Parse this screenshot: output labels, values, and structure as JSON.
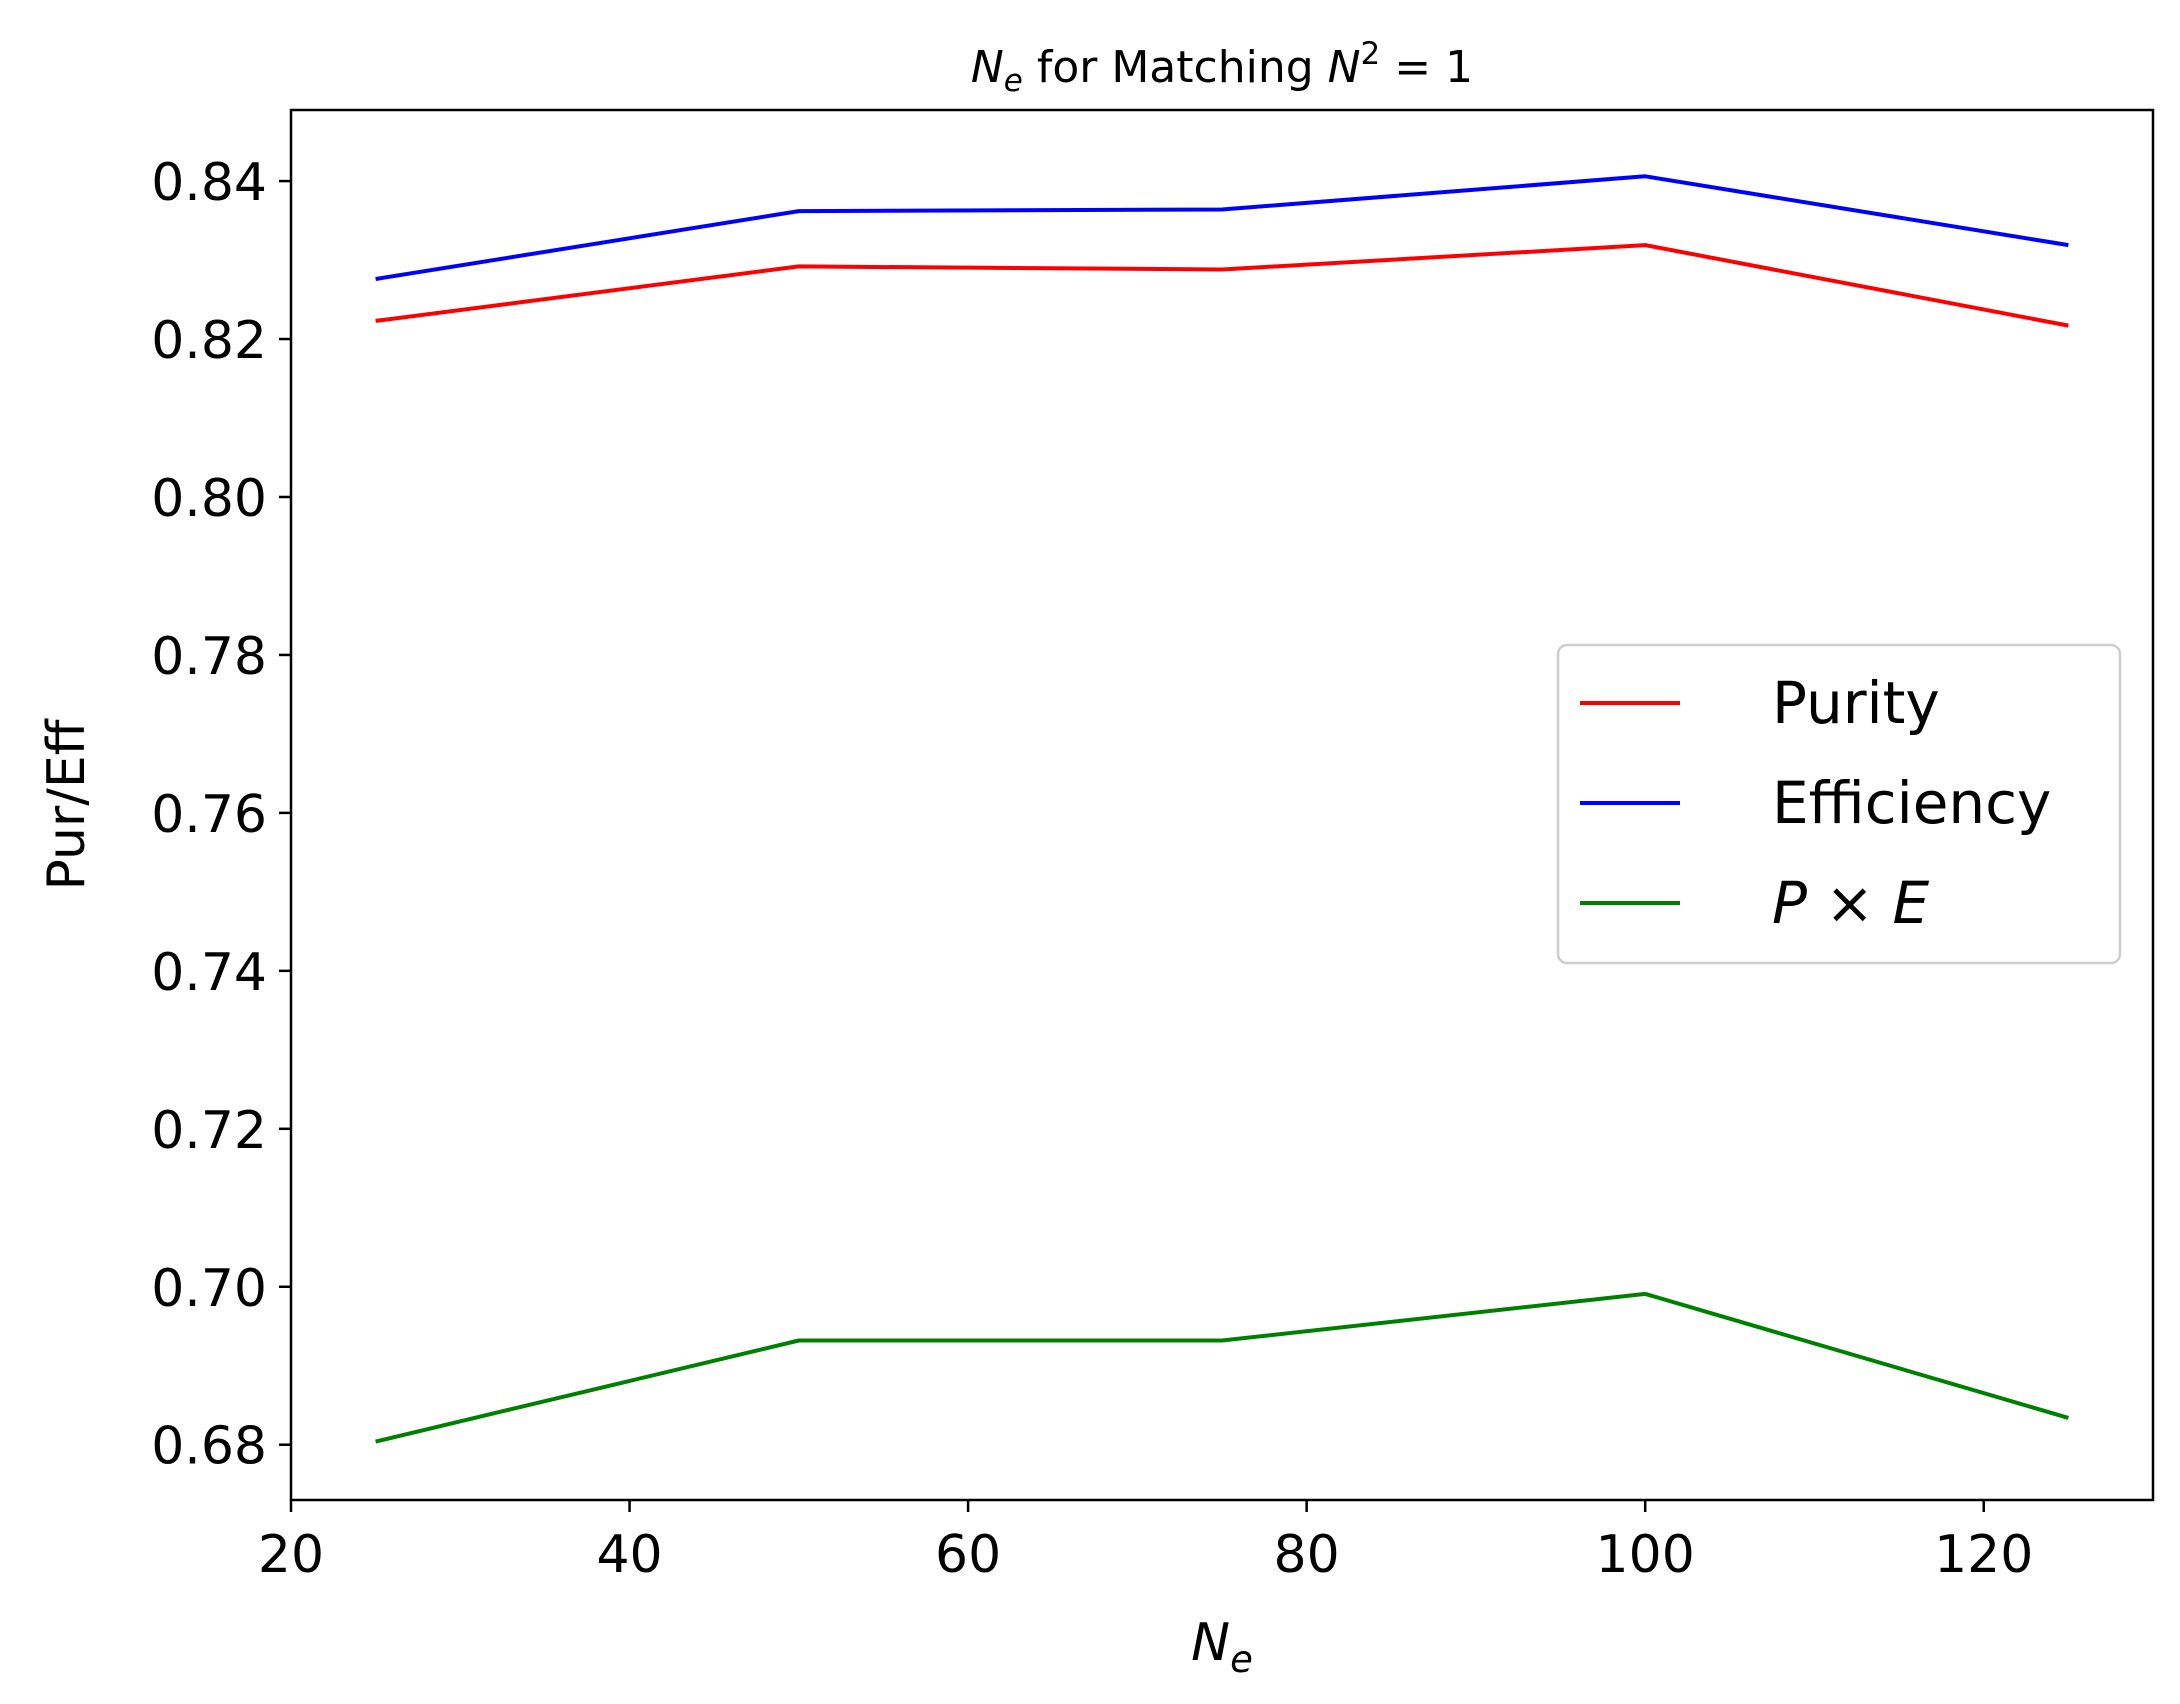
{
  "chart_data": {
    "type": "line",
    "title": {
      "pre_italic": "N",
      "pre_sub": "e",
      "middle": " for Matching ",
      "post_italic": "N",
      "post_sup": "2",
      "tail": " = 1"
    },
    "xlabel": {
      "main": "N",
      "sub": "e"
    },
    "ylabel": "Pur/Eff",
    "xlim": [
      20,
      130
    ],
    "ylim": [
      0.673,
      0.849
    ],
    "xticks": [
      20,
      40,
      60,
      80,
      100,
      120
    ],
    "yticks": [
      0.68,
      0.7,
      0.72,
      0.74,
      0.76,
      0.78,
      0.8,
      0.82,
      0.84
    ],
    "ytick_labels": [
      "0.68",
      "0.70",
      "0.72",
      "0.74",
      "0.76",
      "0.78",
      "0.80",
      "0.82",
      "0.84"
    ],
    "x": [
      25,
      50,
      75,
      100,
      125
    ],
    "series": [
      {
        "name": "Purity",
        "color": "#ff0000",
        "values": [
          0.8223,
          0.8292,
          0.8288,
          0.8319,
          0.8217
        ]
      },
      {
        "name": "Efficiency",
        "color": "#0000ff",
        "values": [
          0.8276,
          0.8362,
          0.8364,
          0.8406,
          0.8319
        ]
      },
      {
        "name": "P × E",
        "name_parts": [
          "P",
          " × ",
          "E"
        ],
        "color": "#008000",
        "values": [
          0.6804,
          0.6932,
          0.6932,
          0.6991,
          0.6834
        ]
      }
    ],
    "grid": false,
    "legend_position": "center-right"
  }
}
